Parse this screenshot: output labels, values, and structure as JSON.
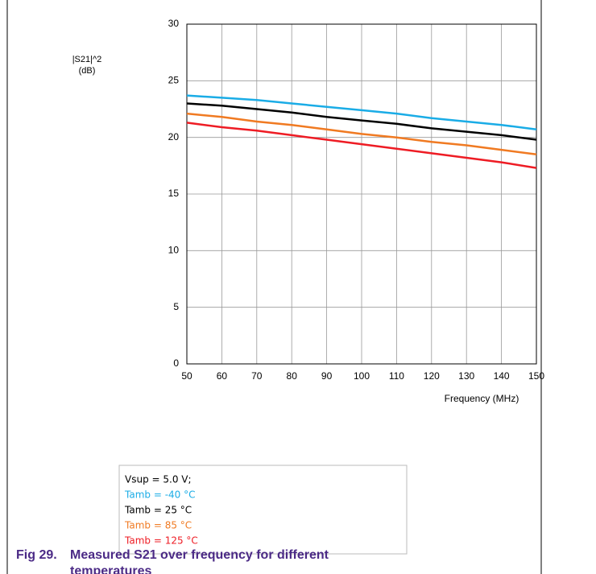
{
  "chart_data": {
    "type": "line",
    "ylabel": "|S21|^2",
    "yunit": "(dB)",
    "xlabel": "Frequency (MHz)",
    "x": [
      50,
      60,
      70,
      80,
      90,
      100,
      110,
      120,
      130,
      140,
      150
    ],
    "series": [
      {
        "name": "Tamb = -40 °C",
        "color": "#1aace6",
        "values": [
          23.7,
          23.5,
          23.3,
          23.0,
          22.7,
          22.4,
          22.1,
          21.7,
          21.4,
          21.1,
          20.7
        ]
      },
      {
        "name": "Tamb = 25 °C",
        "color": "#000000",
        "values": [
          23.0,
          22.8,
          22.5,
          22.2,
          21.8,
          21.5,
          21.2,
          20.8,
          20.5,
          20.2,
          19.8
        ]
      },
      {
        "name": "Tamb = 85 °C",
        "color": "#f07a22",
        "values": [
          22.1,
          21.8,
          21.4,
          21.1,
          20.7,
          20.3,
          20.0,
          19.6,
          19.3,
          18.9,
          18.5
        ]
      },
      {
        "name": "Tamb = 125 °C",
        "color": "#ee1c24",
        "values": [
          21.3,
          20.9,
          20.6,
          20.2,
          19.8,
          19.4,
          19.0,
          18.6,
          18.2,
          17.8,
          17.3
        ]
      }
    ],
    "legend_note": "Vsup = 5.0 V;",
    "xlim": [
      50,
      150
    ],
    "xticks": [
      50,
      60,
      70,
      80,
      90,
      100,
      110,
      120,
      130,
      140,
      150
    ],
    "ylim": [
      0,
      30
    ],
    "yticks": [
      0,
      5,
      10,
      15,
      20,
      25,
      30
    ],
    "grid": true,
    "caption_label": "Fig 29.",
    "caption": "Measured S21 over frequency for different temperatures"
  }
}
